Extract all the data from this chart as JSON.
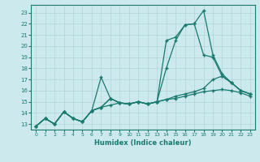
{
  "xlabel": "Humidex (Indice chaleur)",
  "xlim": [
    -0.5,
    23.5
  ],
  "ylim": [
    12.5,
    23.7
  ],
  "yticks": [
    13,
    14,
    15,
    16,
    17,
    18,
    19,
    20,
    21,
    22,
    23
  ],
  "xticks": [
    0,
    1,
    2,
    3,
    4,
    5,
    6,
    7,
    8,
    9,
    10,
    11,
    12,
    13,
    14,
    15,
    16,
    17,
    18,
    19,
    20,
    21,
    22,
    23
  ],
  "bg_color": "#cce9ee",
  "line_color": "#1a7a6e",
  "grid_color": "#b8d8de",
  "lines": [
    [
      12.8,
      13.5,
      13.0,
      14.1,
      13.5,
      13.2,
      14.2,
      17.2,
      15.3,
      14.9,
      14.8,
      15.0,
      14.8,
      15.0,
      20.5,
      20.8,
      21.9,
      22.0,
      23.2,
      19.2,
      17.5,
      16.7,
      16.0,
      15.7
    ],
    [
      12.8,
      13.5,
      13.0,
      14.1,
      13.5,
      13.2,
      14.2,
      14.5,
      15.3,
      14.9,
      14.8,
      15.0,
      14.8,
      15.0,
      18.0,
      20.5,
      21.9,
      22.0,
      19.2,
      19.0,
      17.3,
      16.7,
      16.0,
      15.7
    ],
    [
      12.8,
      13.5,
      13.0,
      14.1,
      13.5,
      13.2,
      14.2,
      14.5,
      15.3,
      14.9,
      14.8,
      15.0,
      14.8,
      15.0,
      15.2,
      15.5,
      15.7,
      15.9,
      16.2,
      17.0,
      17.3,
      16.7,
      16.0,
      15.7
    ],
    [
      12.8,
      13.5,
      13.0,
      14.1,
      13.5,
      13.2,
      14.2,
      14.5,
      14.7,
      14.9,
      14.8,
      15.0,
      14.8,
      15.0,
      15.2,
      15.3,
      15.5,
      15.7,
      15.9,
      16.0,
      16.1,
      16.0,
      15.8,
      15.5
    ]
  ]
}
